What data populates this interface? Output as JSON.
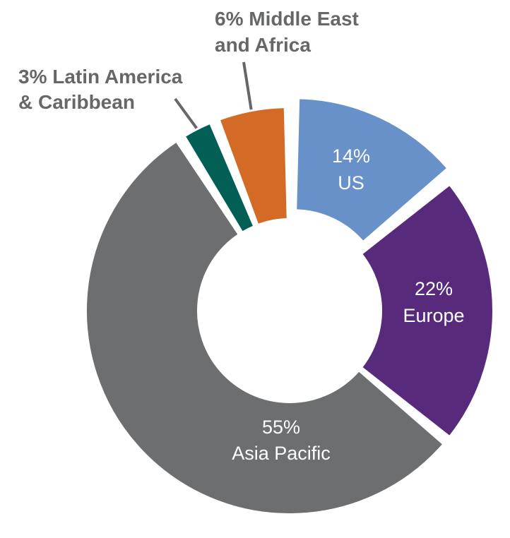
{
  "chart_data": {
    "type": "pie",
    "variant": "donut",
    "title": "",
    "slices": [
      {
        "label": "US",
        "pct_label": "14%",
        "value": 14,
        "color": "#6891c9",
        "exploded": true,
        "label_position": "inside"
      },
      {
        "label": "Europe",
        "pct_label": "22%",
        "value": 22,
        "color": "#572a7c",
        "exploded": false,
        "label_position": "inside"
      },
      {
        "label": "Asia Pacific",
        "pct_label": "55%",
        "value": 55,
        "color": "#6d6e70",
        "exploded": false,
        "label_position": "inside"
      },
      {
        "label": "& Caribbean",
        "label_line1": "3% Latin America",
        "pct_label": "3%",
        "value": 3,
        "color": "#015f56",
        "exploded": false,
        "label_position": "outside"
      },
      {
        "label": "and Africa",
        "label_line1": "6% Middle East",
        "pct_label": "6%",
        "value": 6,
        "color": "#d36b27",
        "exploded": false,
        "label_position": "outside"
      }
    ],
    "label_text_color": "#ffffff",
    "outside_label_color": "#666769"
  }
}
